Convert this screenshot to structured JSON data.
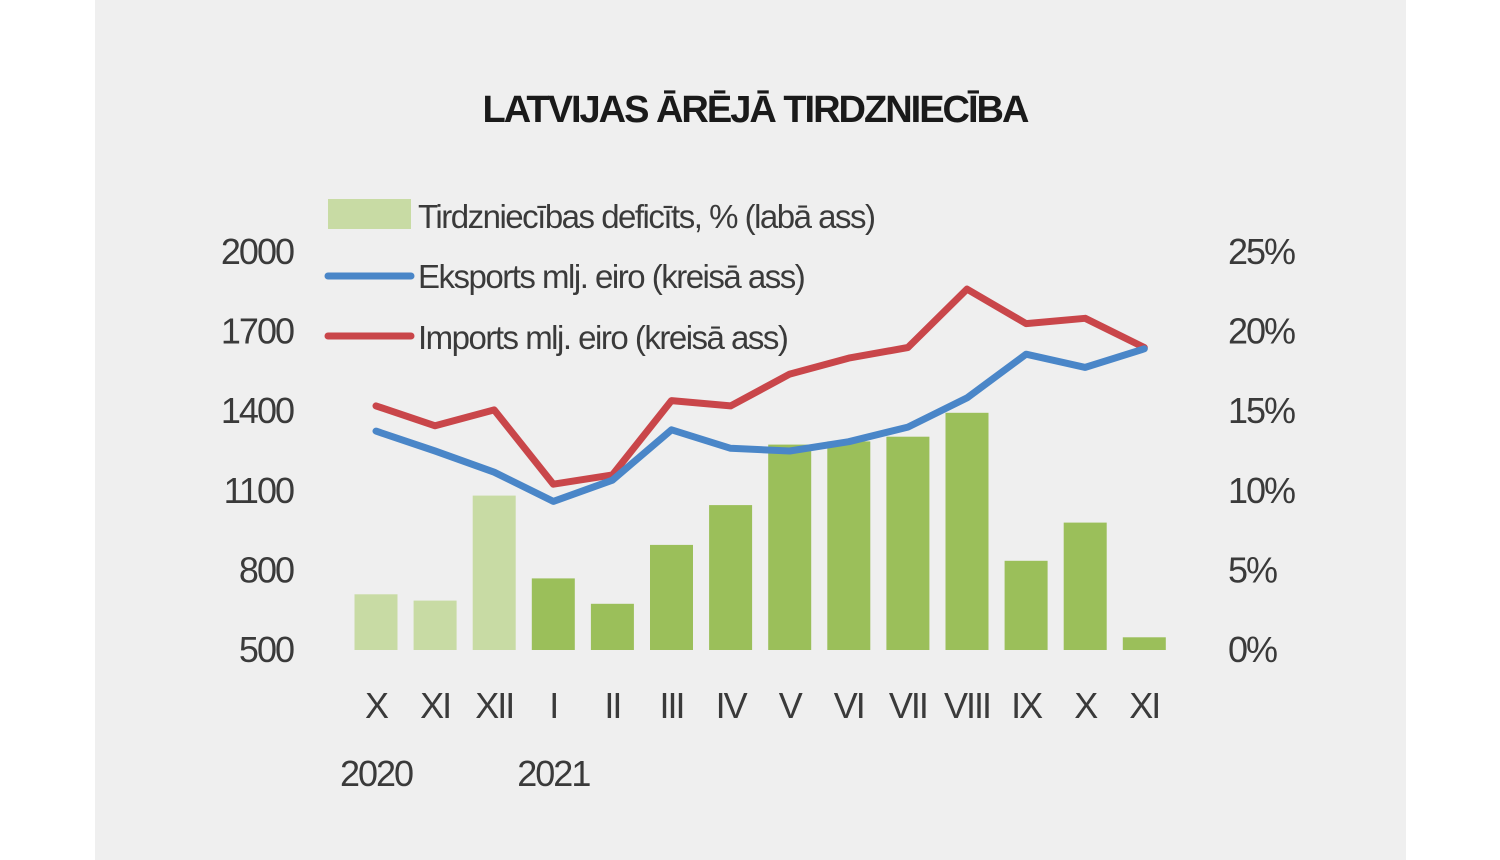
{
  "chart_data": {
    "type": "bar+line",
    "title": "LATVIJAS ĀRĒJĀ TIRDZNIECĪBA",
    "categories": [
      "X",
      "XI",
      "XII",
      "I",
      "II",
      "III",
      "IV",
      "V",
      "VI",
      "VII",
      "VIII",
      "IX",
      "X",
      "XI"
    ],
    "year_labels": [
      {
        "label": "2020",
        "category_index": 0
      },
      {
        "label": "2021",
        "category_index": 3
      }
    ],
    "left_axis": {
      "ylim": [
        500,
        2000
      ],
      "ticks": [
        "2000",
        "1700",
        "1400",
        "1100",
        "800",
        "500"
      ],
      "tick_values": [
        2000,
        1700,
        1400,
        1100,
        800,
        500
      ]
    },
    "right_axis": {
      "ylim": [
        0,
        25
      ],
      "ticks": [
        "25%",
        "20%",
        "15%",
        "10%",
        "5%",
        "0%"
      ],
      "tick_values": [
        25,
        20,
        15,
        10,
        5,
        0
      ]
    },
    "series": [
      {
        "name": "Tirdzniecības deficīts, % (labā ass)",
        "kind": "bar",
        "axis": "right",
        "values": [
          3.5,
          3.1,
          9.7,
          4.5,
          2.9,
          6.6,
          9.1,
          12.9,
          13.1,
          13.4,
          14.9,
          5.6,
          8.0,
          0.8
        ],
        "highlight_from_index": 3
      },
      {
        "name": "Eksports mlj. eiro (kreisā ass)",
        "kind": "line",
        "axis": "left",
        "values": [
          1325,
          1250,
          1170,
          1060,
          1140,
          1330,
          1260,
          1250,
          1285,
          1340,
          1450,
          1615,
          1565,
          1635
        ]
      },
      {
        "name": "Imports mlj. eiro (kreisā ass)",
        "kind": "line",
        "axis": "left",
        "values": [
          1420,
          1345,
          1405,
          1125,
          1160,
          1440,
          1420,
          1540,
          1600,
          1640,
          1860,
          1730,
          1750,
          1640
        ]
      }
    ],
    "colors": {
      "bar_light": "#c8dba4",
      "bar_dark": "#9bbf5a",
      "exports_line": "#4a86c8",
      "imports_line": "#c9464a",
      "background": "#efefef"
    },
    "legend": {
      "placement": "top-left"
    }
  }
}
